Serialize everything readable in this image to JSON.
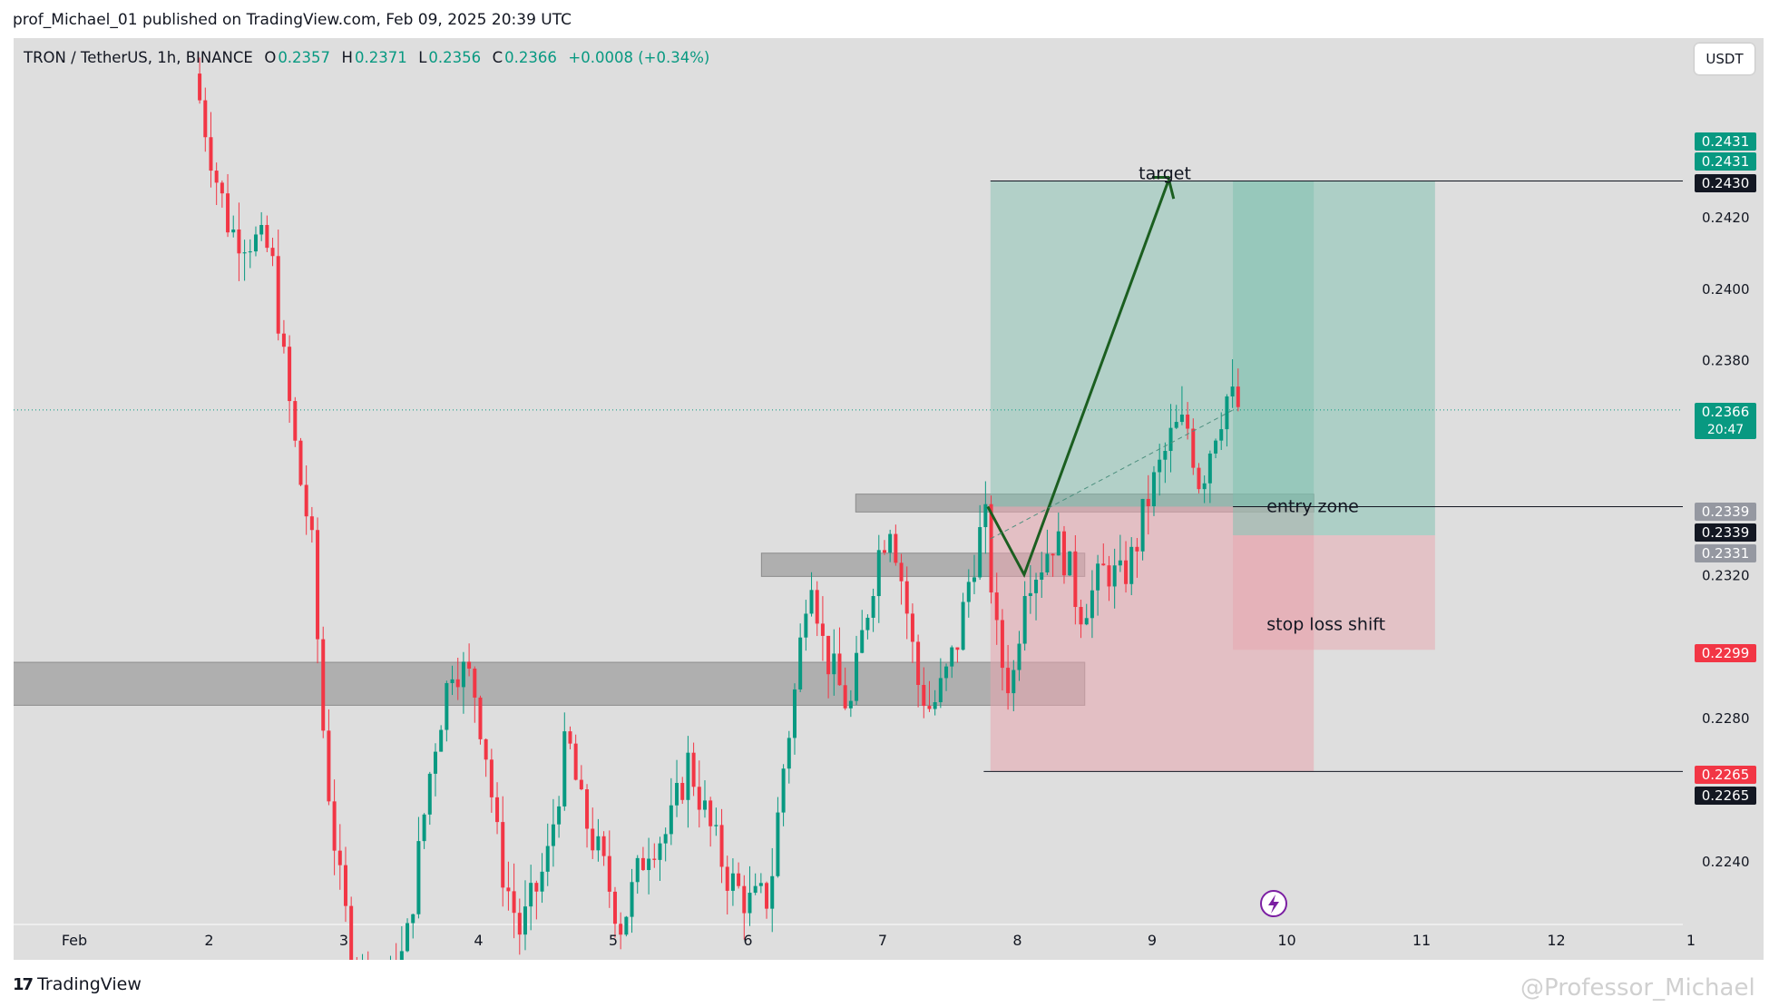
{
  "header": {
    "publisher_line": "prof_Michael_01 published on TradingView.com, Feb 09, 2025 20:39 UTC"
  },
  "legend": {
    "symbol": "TRON / TetherUS, 1h, BINANCE",
    "open_label": "O",
    "open": "0.2357",
    "high_label": "H",
    "high": "0.2371",
    "low_label": "L",
    "low": "0.2356",
    "close_label": "C",
    "close": "0.2366",
    "change": "+0.0008 (+0.34%)"
  },
  "currency_button": "USDT",
  "footer": {
    "brand": "TradingView",
    "watermark": "@Professor_Michael"
  },
  "colors": {
    "up": "#089981",
    "down": "#f23645",
    "background": "#dedede",
    "profit_zone": "#7cbfae",
    "loss_zone": "#e8a6ae"
  },
  "chart_data": {
    "type": "candlestick",
    "interval": "1h",
    "y_axis": {
      "ticks": [
        0.224,
        0.228,
        0.232,
        0.238,
        0.24,
        0.242
      ],
      "tick_labels": [
        "0.2240",
        "0.2280",
        "0.2320",
        "0.2380",
        "0.2400",
        "0.2420"
      ]
    },
    "x_axis": {
      "ticks": [
        1,
        2,
        3,
        4,
        5,
        6,
        7,
        8,
        9,
        10,
        11,
        12,
        13
      ],
      "tick_labels": [
        "Feb",
        "2",
        "3",
        "4",
        "5",
        "6",
        "7",
        "8",
        "9",
        "10",
        "11",
        "12",
        "1"
      ]
    },
    "price_labels": [
      {
        "value": "0.2431",
        "color": "#089981"
      },
      {
        "value": "0.2431",
        "color": "#089981"
      },
      {
        "value": "0.2430",
        "color": "#131722"
      },
      {
        "value": "0.2366",
        "sub": "20:47",
        "color": "#089981"
      },
      {
        "value": "0.2339",
        "color": "#9598a1"
      },
      {
        "value": "0.2339",
        "color": "#131722"
      },
      {
        "value": "0.2331",
        "color": "#9598a1"
      },
      {
        "value": "0.2299",
        "color": "#f23645"
      },
      {
        "value": "0.2265",
        "color": "#f23645"
      },
      {
        "value": "0.2265",
        "color": "#131722"
      }
    ],
    "annotations": [
      {
        "text": "target",
        "price": 0.243,
        "day": 9.0
      },
      {
        "text": "entry zone",
        "price": 0.2339,
        "day": 9.9
      },
      {
        "text": "stop loss shift",
        "price": 0.2306,
        "day": 9.9
      }
    ],
    "zones": [
      {
        "kind": "support",
        "from_day": 0.0,
        "to_day": 8.5,
        "low": 0.22835,
        "high": 0.22955
      },
      {
        "kind": "support",
        "from_day": 6.1,
        "to_day": 8.5,
        "low": 0.23195,
        "high": 0.2326
      },
      {
        "kind": "support",
        "from_day": 6.8,
        "to_day": 10.2,
        "low": 0.23375,
        "high": 0.23425
      }
    ],
    "positions": [
      {
        "entry": 0.2339,
        "target": 0.243,
        "stop": 0.2265,
        "from_day": 7.8,
        "to_day": 10.2
      },
      {
        "entry": 0.2331,
        "target": 0.243,
        "stop": 0.2299,
        "from_day": 9.6,
        "to_day": 11.1
      }
    ],
    "levels": [
      0.243,
      0.2339,
      0.2265
    ],
    "current_price": 0.2366
  }
}
